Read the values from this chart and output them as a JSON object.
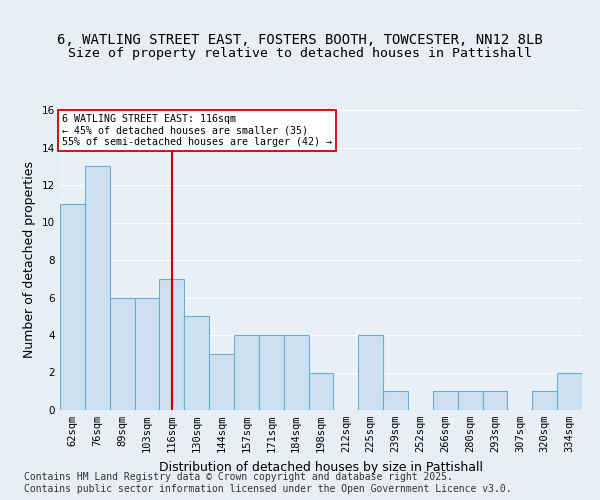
{
  "title_line1": "6, WATLING STREET EAST, FOSTERS BOOTH, TOWCESTER, NN12 8LB",
  "title_line2": "Size of property relative to detached houses in Pattishall",
  "xlabel": "Distribution of detached houses by size in Pattishall",
  "ylabel": "Number of detached properties",
  "categories": [
    "62sqm",
    "76sqm",
    "89sqm",
    "103sqm",
    "116sqm",
    "130sqm",
    "144sqm",
    "157sqm",
    "171sqm",
    "184sqm",
    "198sqm",
    "212sqm",
    "225sqm",
    "239sqm",
    "252sqm",
    "266sqm",
    "280sqm",
    "293sqm",
    "307sqm",
    "320sqm",
    "334sqm"
  ],
  "values": [
    11,
    13,
    6,
    6,
    7,
    5,
    3,
    4,
    4,
    4,
    2,
    0,
    4,
    1,
    0,
    1,
    1,
    1,
    0,
    1,
    2
  ],
  "bar_color": "#cce0f0",
  "bar_edge_color": "#6aaed6",
  "highlight_index": 4,
  "highlight_line_color": "#cc0000",
  "highlight_box_color": "#cc0000",
  "annotation_title": "6 WATLING STREET EAST: 116sqm",
  "annotation_line1": "← 45% of detached houses are smaller (35)",
  "annotation_line2": "55% of semi-detached houses are larger (42) →",
  "ylim": [
    0,
    16
  ],
  "yticks": [
    0,
    2,
    4,
    6,
    8,
    10,
    12,
    14,
    16
  ],
  "footer_line1": "Contains HM Land Registry data © Crown copyright and database right 2025.",
  "footer_line2": "Contains public sector information licensed under the Open Government Licence v3.0.",
  "bg_color": "#e8eef5",
  "plot_bg_color": "#eaf0f8",
  "grid_color": "#ffffff",
  "title_fontsize": 10,
  "axis_label_fontsize": 9,
  "tick_fontsize": 7.5,
  "footer_fontsize": 7
}
